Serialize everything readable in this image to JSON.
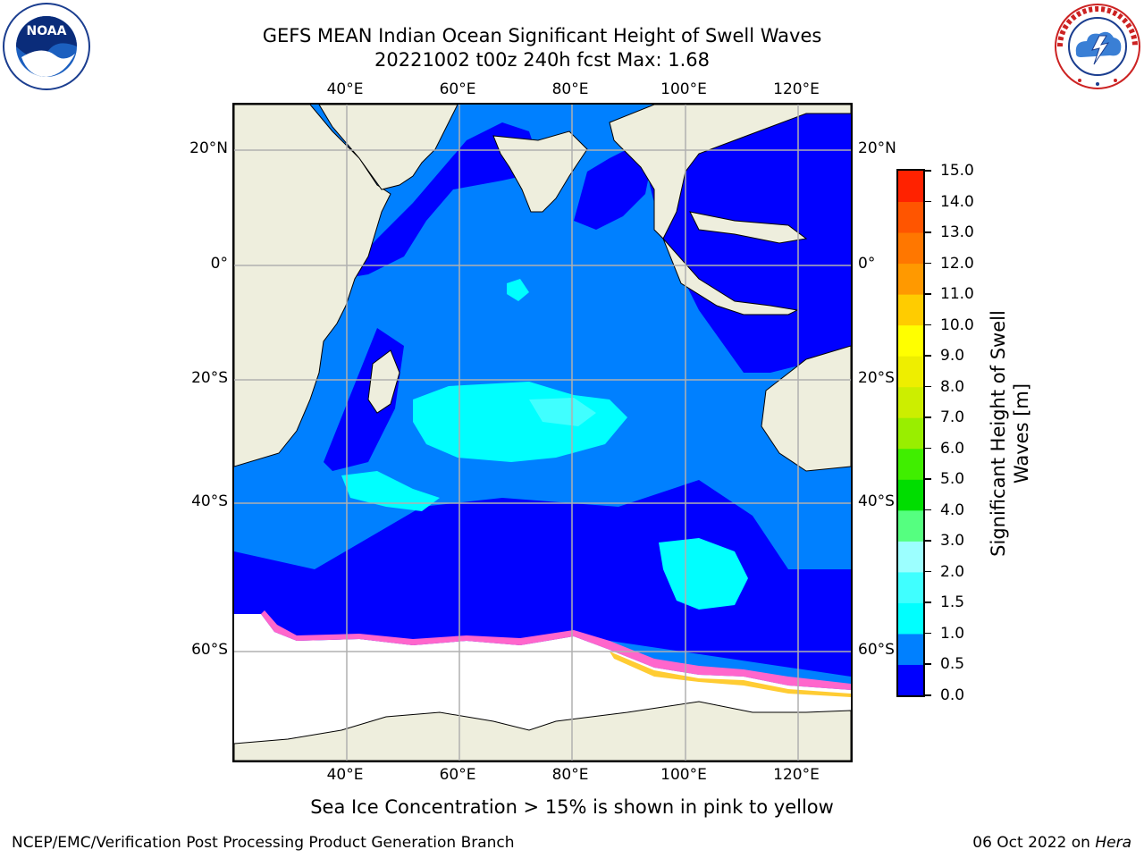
{
  "title": {
    "line1": "GEFS MEAN Indian Ocean Significant Height of Swell Waves",
    "line2": "20221002 t00z 240h fcst   Max: 1.68"
  },
  "axes": {
    "top_lon": [
      "40°E",
      "60°E",
      "80°E",
      "100°E",
      "120°E"
    ],
    "bottom_lon": [
      "40°E",
      "60°E",
      "80°E",
      "100°E",
      "120°E"
    ],
    "left_lat": [
      "20°N",
      "0°",
      "20°S",
      "40°S",
      "60°S"
    ],
    "right_lat": [
      "20°N",
      "0°",
      "20°S",
      "40°S",
      "60°S"
    ]
  },
  "colorbar": {
    "title": "Significant Height of Swell Waves [m]",
    "ticks": [
      "0.0",
      "0.5",
      "1.0",
      "1.5",
      "2.0",
      "3.0",
      "4.0",
      "5.0",
      "6.0",
      "7.0",
      "8.0",
      "9.0",
      "10.0",
      "11.0",
      "12.0",
      "13.0",
      "14.0",
      "15.0"
    ],
    "colors": [
      "#0000ff",
      "#0080ff",
      "#00ffff",
      "#40ffff",
      "#9cffff",
      "#55ff80",
      "#00dd00",
      "#40ee00",
      "#99ee00",
      "#ccee00",
      "#eeee00",
      "#ffff00",
      "#ffcc00",
      "#ff9900",
      "#ff7700",
      "#ff5500",
      "#ff2200"
    ]
  },
  "map": {
    "colors": {
      "land": "#eeeedd",
      "ice": "#ffffff",
      "swell_0_05": "#0000ff",
      "swell_05_10": "#0080ff",
      "swell_10_15": "#00ffff",
      "swell_15_20": "#40ffff",
      "ice_edge_pink": "#ff66cc",
      "ice_edge_yellow": "#ffcc33",
      "grid": "#b0b0b0"
    }
  },
  "note": "Sea Ice Concentration > 15% is shown in pink to yellow",
  "footer": {
    "left": "NCEP/EMC/Verification Post Processing Product Generation Branch",
    "right_prefix": "06 Oct 2022 on ",
    "right_italic": "Hera"
  },
  "logos": {
    "noaa_text": "NOAA",
    "noaa_ring": "NATIONAL OCEANIC AND ATMOSPHERIC ADMINISTRATION · U.S. DEPARTMENT OF COMMERCE",
    "nws_ring": "NATIONAL WEATHER SERVICE"
  }
}
